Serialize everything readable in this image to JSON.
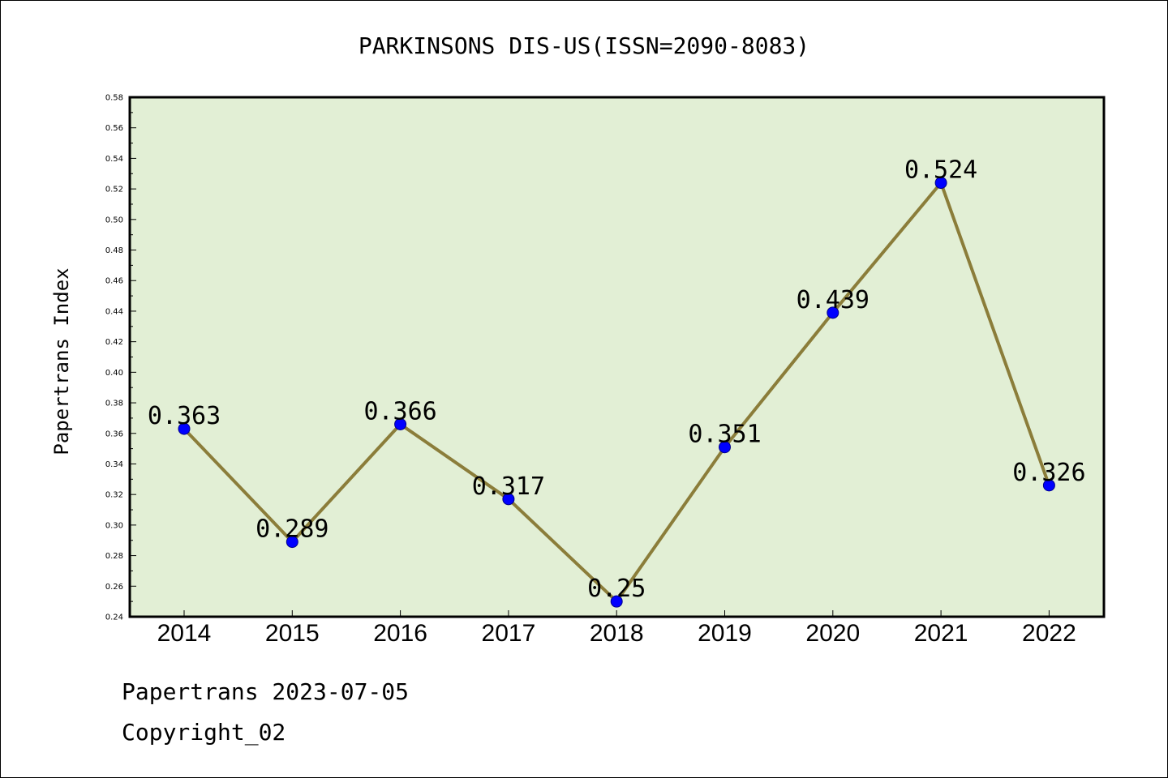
{
  "chart_data": {
    "type": "line",
    "title": "PARKINSONS DIS-US(ISSN=2090-8083)",
    "xlabel": "",
    "ylabel": "Papertrans Index",
    "categories": [
      "2014",
      "2015",
      "2016",
      "2017",
      "2018",
      "2019",
      "2020",
      "2021",
      "2022"
    ],
    "values": [
      0.363,
      0.289,
      0.366,
      0.317,
      0.25,
      0.351,
      0.439,
      0.524,
      0.326
    ],
    "data_labels": [
      "0.363",
      "0.289",
      "0.366",
      "0.317",
      "0.25",
      "0.351",
      "0.439",
      "0.524",
      "0.326"
    ],
    "ylim": [
      0.24,
      0.58
    ],
    "yticks": [
      "0.24",
      "0.26",
      "0.28",
      "0.30",
      "0.32",
      "0.34",
      "0.36",
      "0.38",
      "0.40",
      "0.42",
      "0.44",
      "0.46",
      "0.48",
      "0.50",
      "0.52",
      "0.54",
      "0.56",
      "0.58"
    ],
    "grid": false,
    "colors": {
      "plot_background": "#e2efd5",
      "line": "#8b7d3a",
      "marker": "#0000ff"
    }
  },
  "footer": {
    "line1": "Papertrans 2023-07-05",
    "line2": "Copyright_02"
  }
}
